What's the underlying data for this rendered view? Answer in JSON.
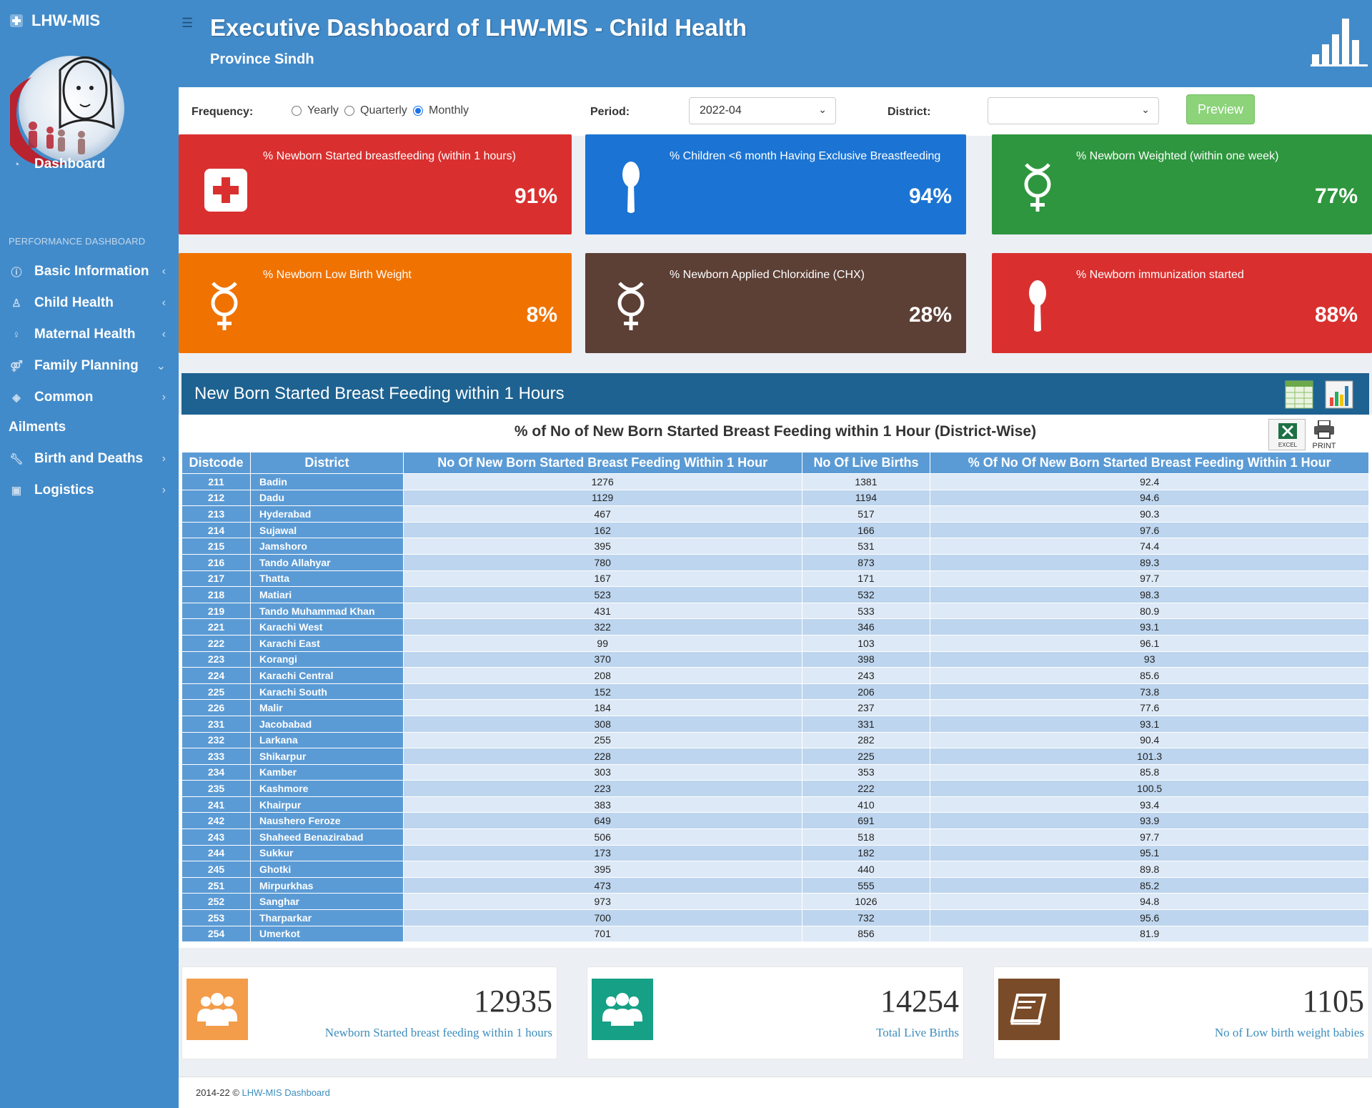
{
  "sidebar": {
    "brand": "LHW-MIS",
    "dashboard": "Dashboard",
    "section": "PERFORMANCE DASHBOARD",
    "items": [
      {
        "label": "Basic Information",
        "chev": "‹"
      },
      {
        "label": "Child Health",
        "chev": "‹"
      },
      {
        "label": "Maternal Health",
        "chev": "‹"
      },
      {
        "label": "Family Planning",
        "chev": "⌄"
      },
      {
        "label": "Common",
        "chev": "›"
      },
      {
        "label": "Ailments",
        "chev": ""
      },
      {
        "label": "Birth and Deaths",
        "chev": "›"
      },
      {
        "label": "Logistics",
        "chev": "›"
      }
    ]
  },
  "header": {
    "title": "Executive Dashboard of LHW-MIS - Child Health",
    "subtitle": "Province Sindh"
  },
  "filters": {
    "frequency_label": "Frequency:",
    "options": [
      "Yearly",
      "Quarterly",
      "Monthly"
    ],
    "selected": "Monthly",
    "period_label": "Period:",
    "period_value": "2022-04",
    "district_label": "District:",
    "district_value": "",
    "preview_label": "Preview"
  },
  "kpis": [
    {
      "label": "% Newborn Started breastfeeding (within 1 hours)",
      "value": "91%",
      "color": "#d9302f",
      "icon": "first-aid-icon"
    },
    {
      "label": "% Children <6 month Having Exclusive Breastfeeding",
      "value": "94%",
      "color": "#1b74d3",
      "icon": "spoon-icon"
    },
    {
      "label": "% Newborn Weighted (within one week)",
      "value": "77%",
      "color": "#2e963e",
      "icon": "mercury-icon"
    },
    {
      "label": "% Newborn Low Birth Weight",
      "value": "8%",
      "color": "#f07200",
      "icon": "mercury-icon"
    },
    {
      "label": "% Newborn Applied Chlorxidine (CHX)",
      "value": "28%",
      "color": "#5c3f35",
      "icon": "mercury-icon"
    },
    {
      "label": "% Newborn immunization started",
      "value": "88%",
      "color": "#d9302f",
      "icon": "spoon-icon"
    }
  ],
  "table_section": {
    "title": "New Born Started Breast Feeding within 1 Hours",
    "subtitle": "% of No of New Born Started Breast Feeding within 1 Hour (District-Wise)",
    "excel_label": "EXCEL",
    "print_label": "PRINT",
    "columns": [
      "Distcode",
      "District",
      "No Of New Born Started Breast Feeding Within 1 Hour",
      "No Of Live Births",
      "% Of No Of New Born Started Breast Feeding Within 1 Hour"
    ],
    "rows": [
      [
        "211",
        "Badin",
        "1276",
        "1381",
        "92.4"
      ],
      [
        "212",
        "Dadu",
        "1129",
        "1194",
        "94.6"
      ],
      [
        "213",
        "Hyderabad",
        "467",
        "517",
        "90.3"
      ],
      [
        "214",
        "Sujawal",
        "162",
        "166",
        "97.6"
      ],
      [
        "215",
        "Jamshoro",
        "395",
        "531",
        "74.4"
      ],
      [
        "216",
        "Tando Allahyar",
        "780",
        "873",
        "89.3"
      ],
      [
        "217",
        "Thatta",
        "167",
        "171",
        "97.7"
      ],
      [
        "218",
        "Matiari",
        "523",
        "532",
        "98.3"
      ],
      [
        "219",
        "Tando Muhammad Khan",
        "431",
        "533",
        "80.9"
      ],
      [
        "221",
        "Karachi West",
        "322",
        "346",
        "93.1"
      ],
      [
        "222",
        "Karachi East",
        "99",
        "103",
        "96.1"
      ],
      [
        "223",
        "Korangi",
        "370",
        "398",
        "93"
      ],
      [
        "224",
        "Karachi Central",
        "208",
        "243",
        "85.6"
      ],
      [
        "225",
        "Karachi South",
        "152",
        "206",
        "73.8"
      ],
      [
        "226",
        "Malir",
        "184",
        "237",
        "77.6"
      ],
      [
        "231",
        "Jacobabad",
        "308",
        "331",
        "93.1"
      ],
      [
        "232",
        "Larkana",
        "255",
        "282",
        "90.4"
      ],
      [
        "233",
        "Shikarpur",
        "228",
        "225",
        "101.3"
      ],
      [
        "234",
        "Kamber",
        "303",
        "353",
        "85.8"
      ],
      [
        "235",
        "Kashmore",
        "223",
        "222",
        "100.5"
      ],
      [
        "241",
        "Khairpur",
        "383",
        "410",
        "93.4"
      ],
      [
        "242",
        "Naushero Feroze",
        "649",
        "691",
        "93.9"
      ],
      [
        "243",
        "Shaheed Benazirabad",
        "506",
        "518",
        "97.7"
      ],
      [
        "244",
        "Sukkur",
        "173",
        "182",
        "95.1"
      ],
      [
        "245",
        "Ghotki",
        "395",
        "440",
        "89.8"
      ],
      [
        "251",
        "Mirpurkhas",
        "473",
        "555",
        "85.2"
      ],
      [
        "252",
        "Sanghar",
        "973",
        "1026",
        "94.8"
      ],
      [
        "253",
        "Tharparkar",
        "700",
        "732",
        "95.6"
      ],
      [
        "254",
        "Umerkot",
        "701",
        "856",
        "81.9"
      ]
    ]
  },
  "summary": [
    {
      "value": "12935",
      "label": "Newborn Started breast feeding within 1 hours",
      "color": "#f39c4a",
      "icon": "users-icon"
    },
    {
      "value": "14254",
      "label": "Total Live Births",
      "color": "#16a085",
      "icon": "users-icon"
    },
    {
      "value": "1105",
      "label": "No of Low birth weight babies",
      "color": "#7a4b28",
      "icon": "book-icon"
    }
  ],
  "footer": {
    "prefix": "2014-22 ©",
    "link": "LHW-MIS Dashboard"
  }
}
